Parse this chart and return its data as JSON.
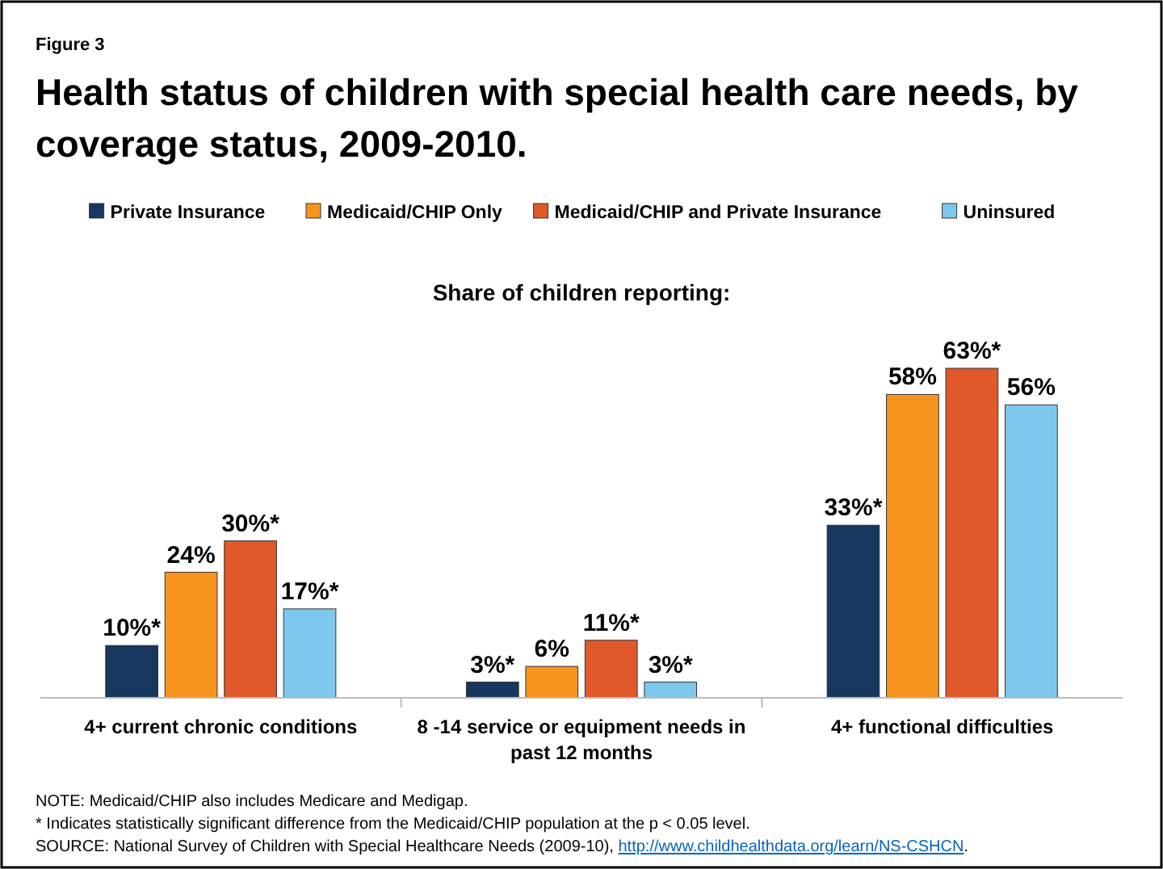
{
  "chart_data": {
    "type": "bar",
    "title": "Health status of children with special health care needs, by coverage status, 2009-2010.",
    "subtitle": "Share of children reporting:",
    "categories": [
      "4+ current chronic conditions",
      "8 -14 service or equipment needs in past 12 months",
      "4+ functional difficulties"
    ],
    "series": [
      {
        "name": "Private Insurance",
        "color": "#17375e",
        "values": [
          10,
          3,
          33
        ],
        "value_labels": [
          "10%*",
          "3%*",
          "33%*"
        ]
      },
      {
        "name": "Medicaid/CHIP Only",
        "color": "#f7941d",
        "values": [
          24,
          6,
          58
        ],
        "value_labels": [
          "24%",
          "6%",
          "58%"
        ]
      },
      {
        "name": "Medicaid/CHIP and Private Insurance",
        "color": "#e0592a",
        "values": [
          30,
          11,
          63
        ],
        "value_labels": [
          "30%*",
          "11%*",
          "63%*"
        ]
      },
      {
        "name": "Uninsured",
        "color": "#7ec8ee",
        "values": [
          17,
          3,
          56
        ],
        "value_labels": [
          "17%*",
          "3%*",
          "56%"
        ]
      }
    ],
    "legend": "top",
    "annotations": [
      "Figure 3",
      "NOTE: Medicaid/CHIP also includes Medicare and Medigap.",
      "* Indicates statistically significant difference from the Medicaid/CHIP population at the p < 0.05 level.",
      "SOURCE: National Survey of Children with Special Healthcare Needs (2009-10), http://www.childhealthdata.org/learn/NS-CSHCN."
    ]
  }
}
